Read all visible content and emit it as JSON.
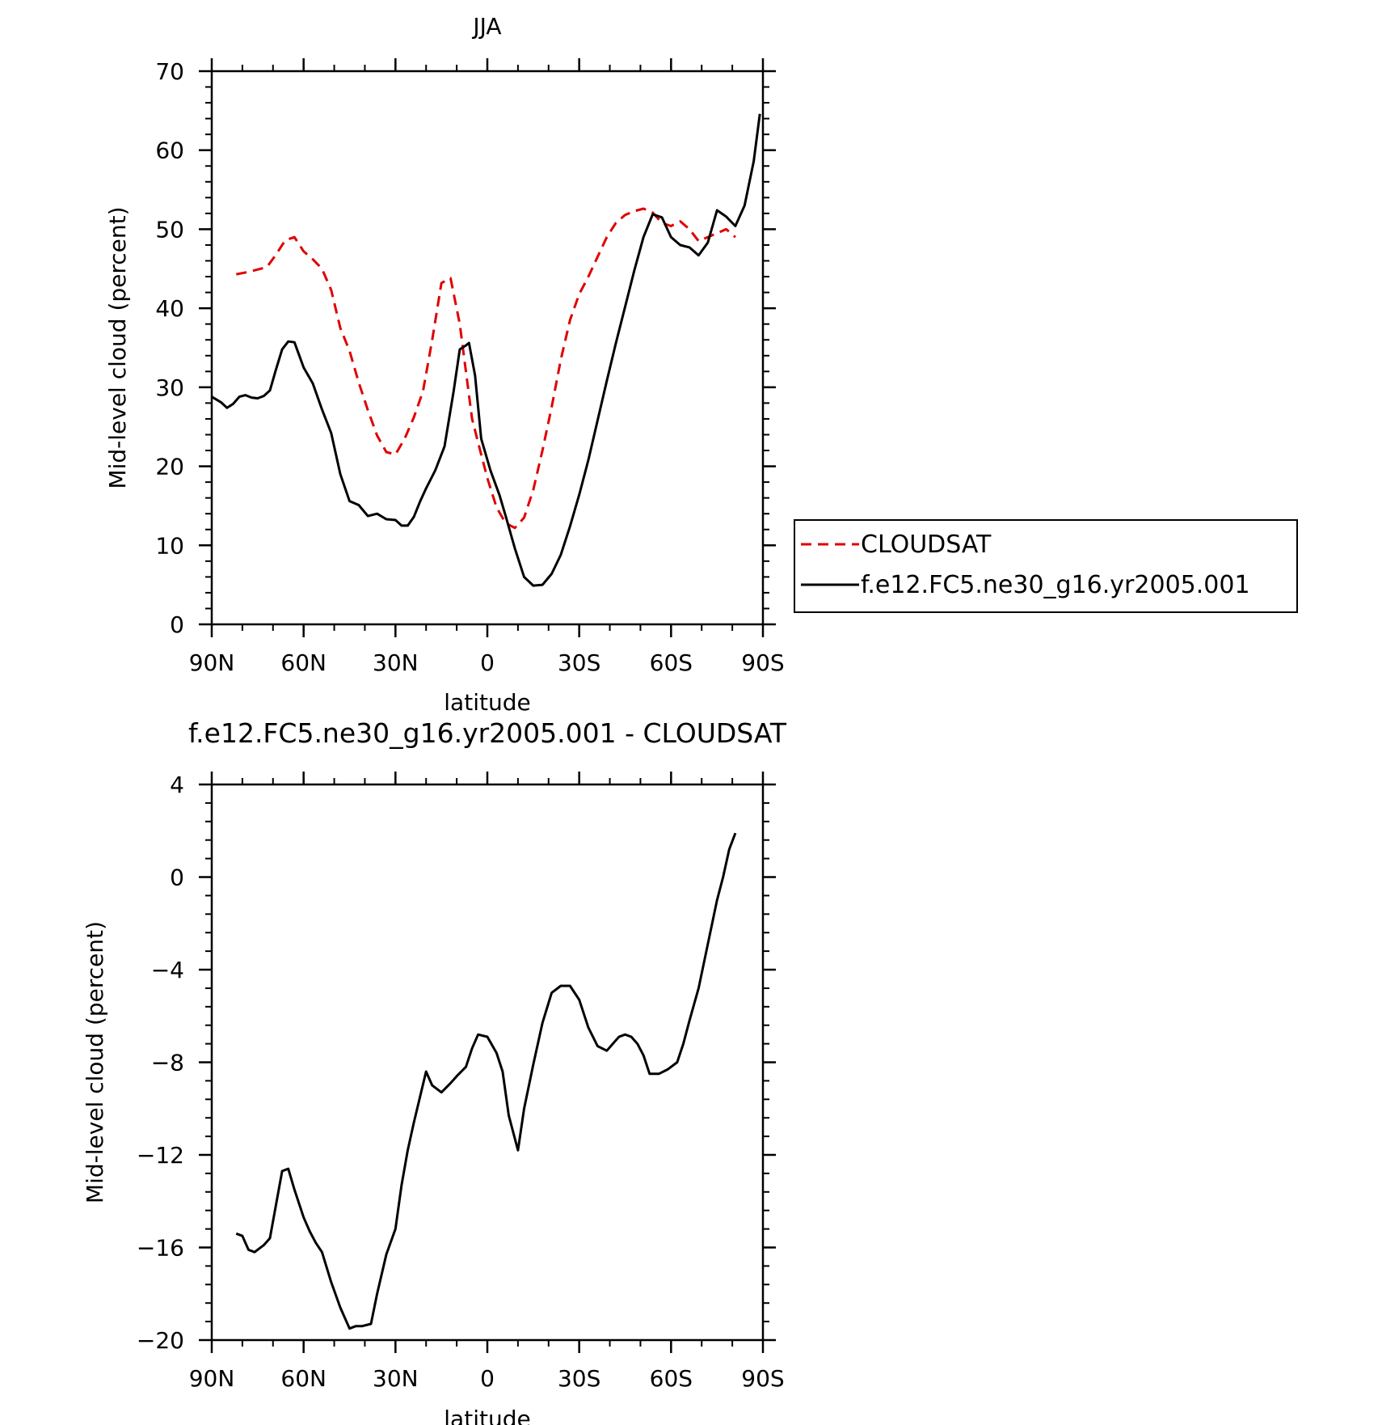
{
  "chart_data": [
    {
      "type": "line",
      "title": "JJA",
      "xlabel": "latitude",
      "ylabel": "Mid-level cloud (percent)",
      "xlim": [
        90,
        -90
      ],
      "ylim": [
        0,
        70
      ],
      "xticks": [
        90,
        60,
        30,
        0,
        -30,
        -60,
        -90
      ],
      "xtick_labels": [
        "90N",
        "60N",
        "30N",
        "0",
        "30S",
        "60S",
        "90S"
      ],
      "yticks": [
        0,
        10,
        20,
        30,
        40,
        50,
        60,
        70
      ],
      "ytick_labels": [
        "0",
        "10",
        "20",
        "30",
        "40",
        "50",
        "60",
        "70"
      ],
      "grid": false,
      "legend": "right",
      "series": [
        {
          "name": "CLOUDSAT",
          "color": "#e00000",
          "dash": true,
          "x": [
            82,
            78,
            72,
            69,
            66,
            63,
            60,
            57,
            54,
            51,
            48,
            45,
            42,
            39,
            36,
            33,
            30,
            27,
            24,
            21,
            18,
            15,
            12,
            9,
            6,
            5,
            3,
            0,
            -3,
            -6,
            -9,
            -12,
            -15,
            -18,
            -21,
            -24,
            -27,
            -30,
            -33,
            -36,
            -39,
            -42,
            -45,
            -48,
            -51,
            -54,
            -57,
            -60,
            -63,
            -66,
            -69,
            -72,
            -75,
            -78,
            -81
          ],
          "y": [
            44.3,
            44.6,
            45.2,
            46.8,
            48.6,
            49.0,
            47.2,
            46.2,
            45.0,
            42.3,
            37.5,
            34.6,
            30.6,
            27.1,
            23.9,
            21.8,
            21.5,
            23.5,
            26.2,
            29.5,
            36.0,
            43.2,
            43.8,
            38.0,
            29.0,
            26.0,
            23.0,
            18.5,
            14.8,
            12.8,
            12.2,
            13.5,
            17.0,
            22.0,
            27.5,
            33.5,
            38.5,
            41.8,
            44.0,
            46.5,
            49.0,
            50.8,
            51.8,
            52.3,
            52.6,
            52.1,
            50.8,
            50.4,
            51.0,
            50.0,
            48.5,
            49.0,
            49.5,
            50.0,
            49.0
          ]
        },
        {
          "name": "f.e12.FC5.ne30_g16.yr2005.001",
          "color": "#000000",
          "dash": false,
          "x": [
            90,
            87,
            85,
            83,
            81,
            79,
            77,
            75,
            73,
            71,
            69,
            67,
            65,
            63,
            60,
            57,
            54,
            51,
            48,
            45,
            42,
            39,
            36,
            33,
            30,
            28,
            26,
            24,
            22,
            20,
            17,
            14,
            11,
            9,
            7,
            6,
            4,
            2,
            -1,
            -4,
            -6,
            -9,
            -12,
            -15,
            -18,
            -21,
            -24,
            -27,
            -30,
            -33,
            -36,
            -39,
            -42,
            -45,
            -48,
            -51,
            -54,
            -57,
            -60,
            -63,
            -66,
            -69,
            -72,
            -75,
            -78,
            -81,
            -84,
            -87,
            -89
          ],
          "y": [
            28.8,
            28.1,
            27.4,
            27.9,
            28.8,
            29.0,
            28.7,
            28.6,
            28.9,
            29.6,
            32.3,
            34.8,
            35.8,
            35.7,
            32.5,
            30.5,
            27.2,
            24.2,
            19.0,
            15.6,
            15.1,
            13.7,
            14.0,
            13.3,
            13.2,
            12.5,
            12.5,
            13.6,
            15.5,
            17.2,
            19.5,
            22.5,
            29.5,
            34.8,
            35.3,
            35.6,
            31.5,
            23.5,
            19.5,
            16.3,
            13.7,
            9.6,
            6.0,
            4.9,
            5.0,
            6.4,
            8.8,
            12.4,
            16.4,
            20.8,
            25.8,
            30.8,
            35.6,
            40.2,
            44.8,
            49.0,
            51.9,
            51.5,
            49.0,
            48.0,
            47.7,
            46.7,
            48.3,
            52.4,
            51.6,
            50.4,
            53.0,
            58.6,
            64.6
          ]
        }
      ]
    },
    {
      "type": "line",
      "title": "f.e12.FC5.ne30_g16.yr2005.001 - CLOUDSAT",
      "xlabel": "latitude",
      "ylabel": "Mid-level cloud (percent)",
      "xlim": [
        90,
        -90
      ],
      "ylim": [
        -20,
        4
      ],
      "xticks": [
        90,
        60,
        30,
        0,
        -30,
        -60,
        -90
      ],
      "xtick_labels": [
        "90N",
        "60N",
        "30N",
        "0",
        "30S",
        "60S",
        "90S"
      ],
      "yticks": [
        -20,
        -16,
        -12,
        -8,
        -4,
        0,
        4
      ],
      "ytick_labels": [
        "−20",
        "−16",
        "−12",
        "−8",
        "−4",
        "0",
        "4"
      ],
      "grid": false,
      "series": [
        {
          "color": "#000000",
          "x": [
            82,
            80,
            78,
            76,
            73,
            71,
            67,
            65,
            63,
            60,
            58,
            56,
            54,
            51,
            48,
            45,
            43,
            41,
            38,
            36,
            33,
            30,
            28,
            26,
            24,
            20,
            18,
            15,
            12,
            10,
            7,
            5,
            3,
            0,
            -3,
            -5,
            -7,
            -10,
            -12,
            -15,
            -18,
            -21,
            -24,
            -27,
            -30,
            -33,
            -36,
            -39,
            -41,
            -43,
            -45,
            -47,
            -49,
            -51,
            -53,
            -56,
            -59,
            -62,
            -64,
            -66,
            -69,
            -72,
            -75,
            -77,
            -79,
            -81
          ],
          "y": [
            -15.4,
            -15.5,
            -16.1,
            -16.2,
            -15.9,
            -15.6,
            -12.7,
            -12.6,
            -13.5,
            -14.7,
            -15.3,
            -15.8,
            -16.2,
            -17.5,
            -18.6,
            -19.5,
            -19.4,
            -19.4,
            -19.3,
            -18.0,
            -16.3,
            -15.2,
            -13.3,
            -11.8,
            -10.6,
            -8.4,
            -9.0,
            -9.3,
            -8.9,
            -8.6,
            -8.2,
            -7.4,
            -6.8,
            -6.9,
            -7.6,
            -8.4,
            -10.3,
            -11.8,
            -10.0,
            -8.1,
            -6.3,
            -5.0,
            -4.7,
            -4.7,
            -5.3,
            -6.5,
            -7.3,
            -7.5,
            -7.2,
            -6.9,
            -6.8,
            -6.9,
            -7.2,
            -7.7,
            -8.5,
            -8.5,
            -8.3,
            -8.0,
            -7.2,
            -6.2,
            -4.8,
            -2.9,
            -1.0,
            0.0,
            1.2,
            1.9
          ]
        }
      ]
    }
  ]
}
